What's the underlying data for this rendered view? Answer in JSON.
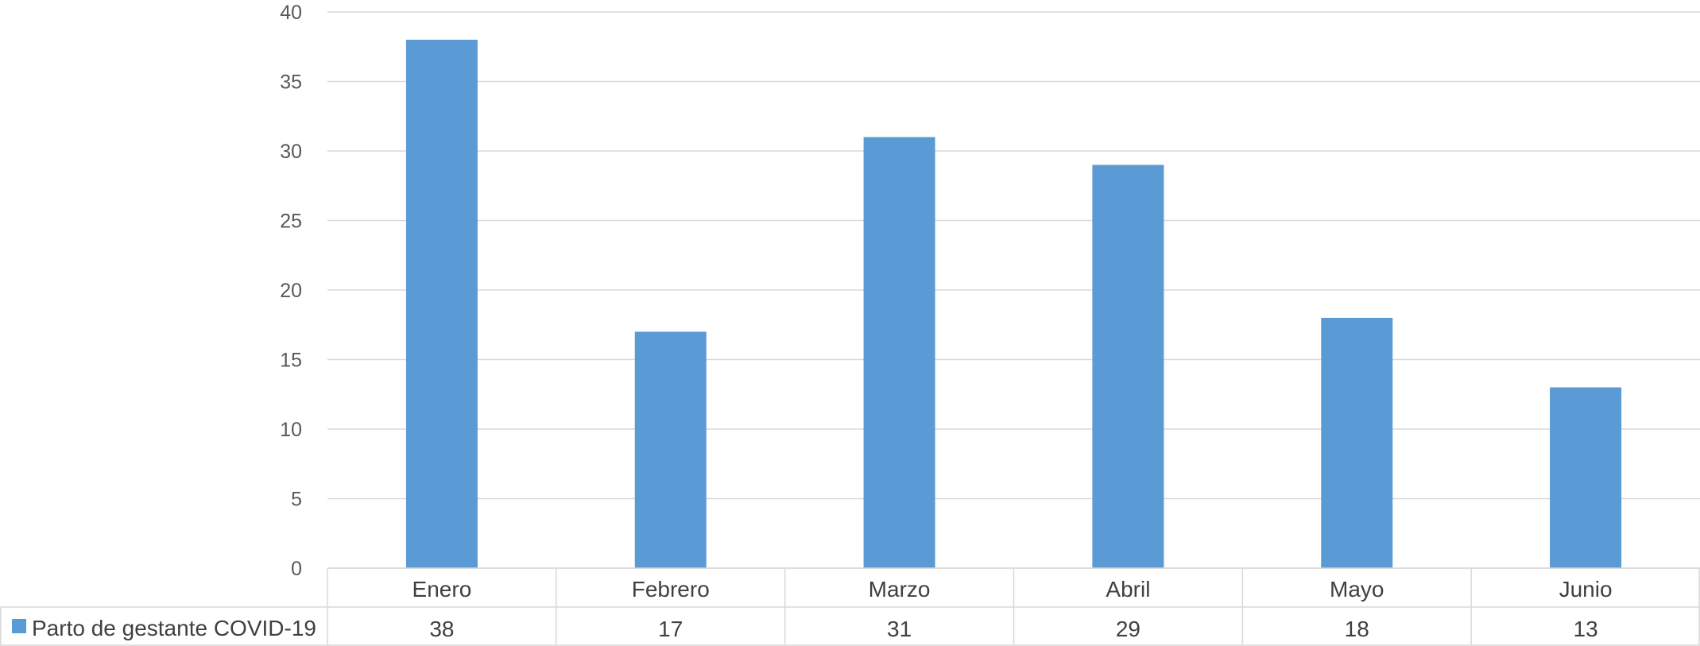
{
  "chart_data": {
    "type": "bar",
    "categories": [
      "Enero",
      "Febrero",
      "Marzo",
      "Abril",
      "Mayo",
      "Junio"
    ],
    "series": [
      {
        "name": "Parto de gestante COVID-19",
        "values": [
          38,
          17,
          31,
          29,
          18,
          13
        ],
        "color": "#5B9BD5"
      }
    ],
    "ylim": [
      0,
      40
    ],
    "yticks": [
      0,
      5,
      10,
      15,
      20,
      25,
      30,
      35,
      40
    ],
    "grid": true,
    "legend": "data-table-left",
    "data_table": true,
    "colors": {
      "grid": "#D9D9D9",
      "table_border": "#D9D9D9",
      "text": "#404040"
    }
  }
}
